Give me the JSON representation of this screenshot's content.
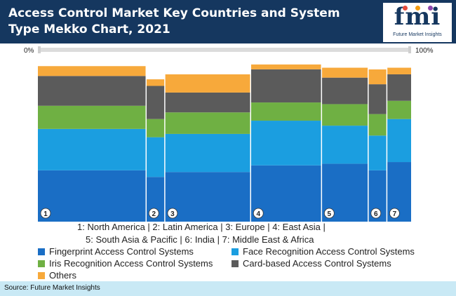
{
  "header": {
    "title": "Access Control Market Key Countries and System Type Mekko Chart, 2021",
    "logo_text": "fmi",
    "logo_subtitle": "Future Market Insights"
  },
  "axis": {
    "left_label": "0%",
    "right_label": "100%"
  },
  "chart_data": {
    "type": "mekko",
    "title": "Access Control Market Key Countries and System Type Mekko Chart, 2021",
    "x_axis_range": [
      "0%",
      "100%"
    ],
    "y_axis_range": [
      0,
      100
    ],
    "columns": [
      {
        "label": "1",
        "region": "North America",
        "width_pct": 29.0,
        "shares": [
          31,
          25,
          14,
          18,
          6
        ]
      },
      {
        "label": "2",
        "region": "Latin America",
        "width_pct": 5.0,
        "shares": [
          27,
          24,
          11,
          20,
          4
        ]
      },
      {
        "label": "3",
        "region": "Europe",
        "width_pct": 23.0,
        "shares": [
          30,
          23,
          13,
          12,
          11
        ]
      },
      {
        "label": "4",
        "region": "East Asia",
        "width_pct": 19.0,
        "shares": [
          34,
          27,
          11,
          20,
          3
        ]
      },
      {
        "label": "5",
        "region": "South Asia & Pacific",
        "width_pct": 12.5,
        "shares": [
          35,
          23,
          13,
          16,
          6
        ]
      },
      {
        "label": "6",
        "region": "India",
        "width_pct": 5.0,
        "shares": [
          31,
          21,
          13,
          18,
          9
        ]
      },
      {
        "label": "7",
        "region": "Middle East & Africa",
        "width_pct": 6.5,
        "shares": [
          36,
          26,
          11,
          16,
          4
        ]
      }
    ],
    "series": [
      {
        "name": "Fingerprint Access Control Systems",
        "color": "#1a6ec5"
      },
      {
        "name": "Face Recognition Access Control Systems",
        "color": "#1b9ee0"
      },
      {
        "name": "Iris Recognition Access Control Systems",
        "color": "#6fb043"
      },
      {
        "name": "Card-based Access Control Systems",
        "color": "#5b5b5b"
      },
      {
        "name": "Others",
        "color": "#f7a93b"
      }
    ]
  },
  "region_legend": {
    "row1": "1: North America   |   2: Latin America   |   3: Europe   |   4: East Asia   |",
    "row2": "5: South Asia & Pacific   |   6: India   |   7: Middle East & Africa"
  },
  "footer": {
    "source": "Source: Future Market Insights"
  }
}
